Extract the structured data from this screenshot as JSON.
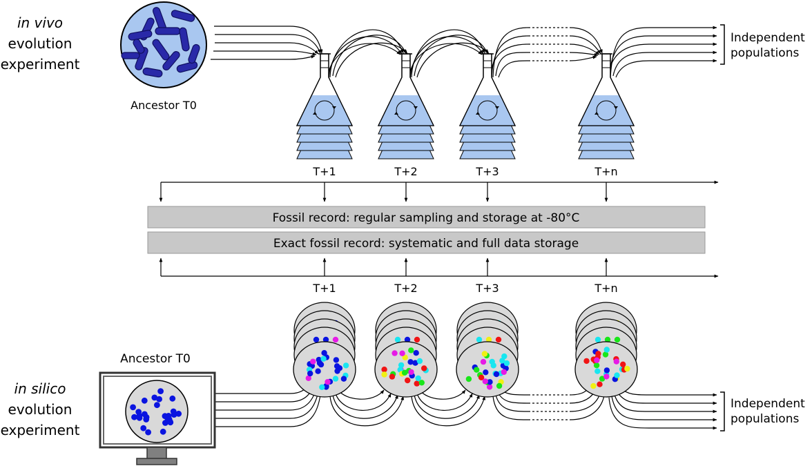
{
  "in_vivo": {
    "title_line1": "in vivo",
    "title_line2": "evolution",
    "title_line3": "experiment",
    "ancestor_label": "Ancestor T0",
    "independent_line1": "Independent",
    "independent_line2": "populations",
    "flask_labels": [
      "T+1",
      "T+2",
      "T+3",
      "T+n"
    ]
  },
  "fossil_bars": {
    "top": "Fossil record: regular sampling and storage at -80°C",
    "bottom": "Exact fossil record: systematic and full data storage"
  },
  "in_silico": {
    "title_line1": "in silico",
    "title_line2": "evolution",
    "title_line3": "experiment",
    "ancestor_label": "Ancestor T0",
    "independent_line1": "Independent",
    "independent_line2": "populations",
    "dish_labels": [
      "T+1",
      "T+2",
      "T+3",
      "T+n"
    ]
  },
  "colors": {
    "culture_blue": "#a9c7f0",
    "bacteria": "#2929a8",
    "bar_grey": "#c8c8c8",
    "dish_grey": "#d9d9d9",
    "dot_blue": "#0a14e0",
    "dot_magenta": "#e61be6",
    "dot_cyan": "#19e6f0",
    "dot_green": "#19e619",
    "dot_red": "#f01414",
    "dot_yellow": "#f0f014"
  }
}
